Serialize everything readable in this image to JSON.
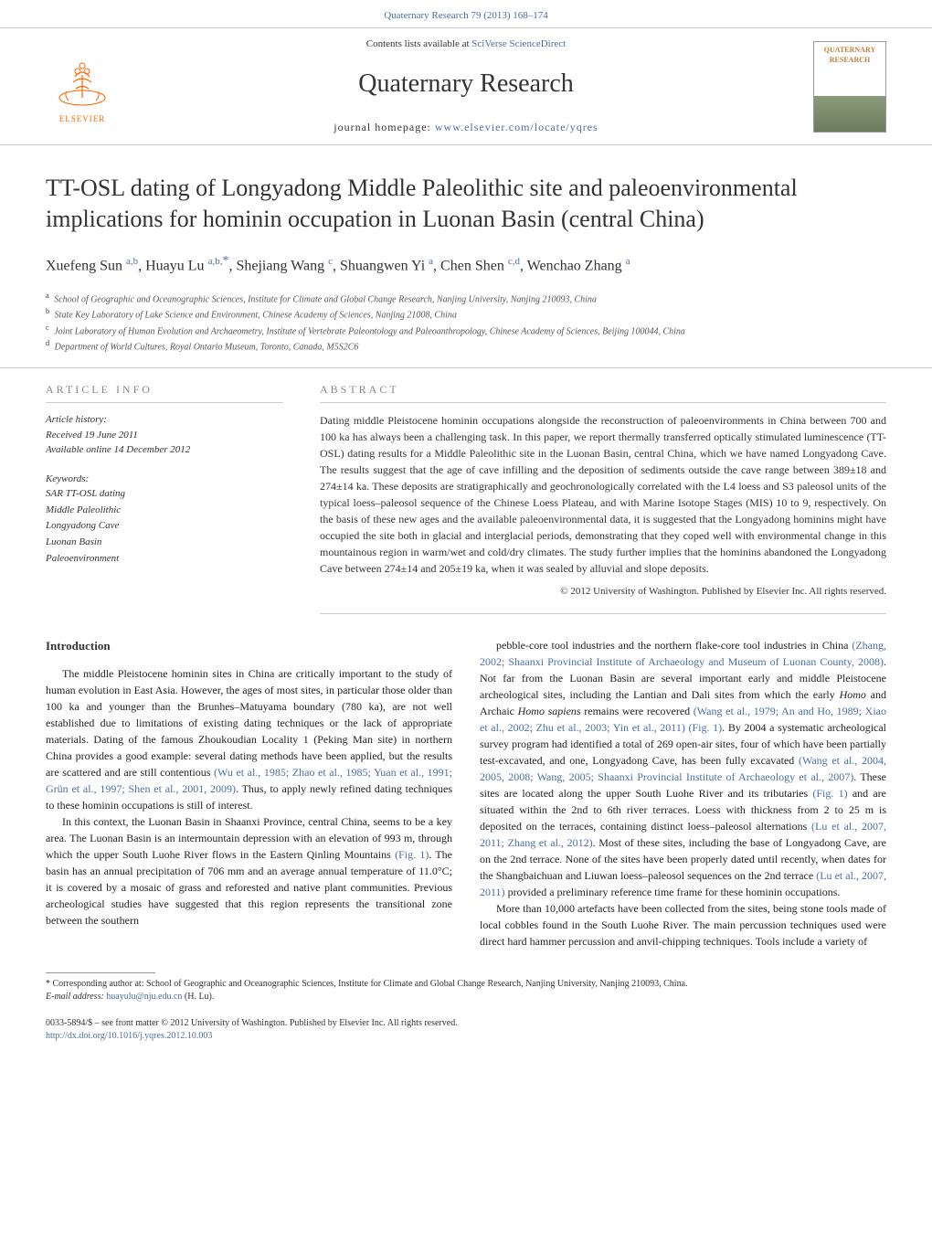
{
  "header": {
    "citation_link": "Quaternary Research 79 (2013) 168–174",
    "contents_text_prefix": "Contents lists available at ",
    "contents_link": "SciVerse ScienceDirect",
    "journal_name": "Quaternary Research",
    "homepage_prefix": "journal homepage: ",
    "homepage_url": "www.elsevier.com/locate/yqres",
    "elsevier_label": "ELSEVIER",
    "cover_title": "QUATERNARY RESEARCH"
  },
  "title": "TT-OSL dating of Longyadong Middle Paleolithic site and paleoenvironmental implications for hominin occupation in Luonan Basin (central China)",
  "authors_html": "Xuefeng Sun <span class='affil'>a,b</span>, Huayu Lu <span class='affil'>a,b,</span><span class='corr'>*</span>, Shejiang Wang <span class='affil'>c</span>, Shuangwen Yi <span class='affil'>a</span>, Chen Shen <span class='affil'>c,d</span>, Wenchao Zhang <span class='affil'>a</span>",
  "affiliations": [
    "School of Geographic and Oceanographic Sciences, Institute for Climate and Global Change Research, Nanjing University, Nanjing 210093, China",
    "State Key Laboratory of Lake Science and Environment, Chinese Academy of Sciences, Nanjing 21008, China",
    "Joint Laboratory of Human Evolution and Archaeometry, Institute of Vertebrate Paleontology and Paleoanthropology, Chinese Academy of Sciences, Beijing 100044, China",
    "Department of World Cultures, Royal Ontario Museum, Toronto, Canada, M5S2C6"
  ],
  "affil_labels": [
    "a",
    "b",
    "c",
    "d"
  ],
  "info": {
    "header": "ARTICLE INFO",
    "history_label": "Article history:",
    "received": "Received 19 June 2011",
    "online": "Available online 14 December 2012",
    "keywords_label": "Keywords:",
    "keywords": [
      "SAR TT-OSL dating",
      "Middle Paleolithic",
      "Longyadong Cave",
      "Luonan Basin",
      "Paleoenvironment"
    ]
  },
  "abstract": {
    "header": "ABSTRACT",
    "text": "Dating middle Pleistocene hominin occupations alongside the reconstruction of paleoenvironments in China between 700 and 100 ka has always been a challenging task. In this paper, we report thermally transferred optically stimulated luminescence (TT-OSL) dating results for a Middle Paleolithic site in the Luonan Basin, central China, which we have named Longyadong Cave. The results suggest that the age of cave infilling and the deposition of sediments outside the cave range between 389±18 and 274±14 ka. These deposits are stratigraphically and geochronologically correlated with the L4 loess and S3 paleosol units of the typical loess–paleosol sequence of the Chinese Loess Plateau, and with Marine Isotope Stages (MIS) 10 to 9, respectively. On the basis of these new ages and the available paleoenvironmental data, it is suggested that the Longyadong hominins might have occupied the site both in glacial and interglacial periods, demonstrating that they coped well with environmental change in this mountainous region in warm/wet and cold/dry climates. The study further implies that the hominins abandoned the Longyadong Cave between 274±14 and 205±19 ka, when it was sealed by alluvial and slope deposits.",
    "copyright": "© 2012 University of Washington. Published by Elsevier Inc. All rights reserved."
  },
  "intro_heading": "Introduction",
  "left_col": [
    "The middle Pleistocene hominin sites in China are critically important to the study of human evolution in East Asia. However, the ages of most sites, in particular those older than 100 ka and younger than the Brunhes–Matuyama boundary (780 ka), are not well established due to limitations of existing dating techniques or the lack of appropriate materials. Dating of the famous Zhoukoudian Locality 1 (Peking Man site) in northern China provides a good example: several dating methods have been applied, but the results are scattered and are still contentious <span class='citation'>(Wu et al., 1985; Zhao et al., 1985; Yuan et al., 1991; Grün et al., 1997; Shen et al., 2001, 2009)</span>. Thus, to apply newly refined dating techniques to these hominin occupations is still of interest.",
    "In this context, the Luonan Basin in Shaanxi Province, central China, seems to be a key area. The Luonan Basin is an intermountain depression with an elevation of 993 m, through which the upper South Luohe River flows in the Eastern Qinling Mountains <span class='citation'>(Fig. 1)</span>. The basin has an annual precipitation of 706 mm and an average annual temperature of 11.0°C; it is covered by a mosaic of grass and reforested and native plant communities. Previous archeological studies have suggested that this region represents the transitional zone between the southern"
  ],
  "right_col": [
    "pebble-core tool industries and the northern flake-core tool industries in China <span class='citation'>(Zhang, 2002; Shaanxi Provincial Institute of Archaeology and Museum of Luonan County, 2008)</span>. Not far from the Luonan Basin are several important early and middle Pleistocene archeological sites, including the Lantian and Dali sites from which the early <i>Homo</i> and Archaic <i>Homo sapiens</i> remains were recovered <span class='citation'>(Wang et al., 1979; An and Ho, 1989; Xiao et al., 2002; Zhu et al., 2003; Yin et al., 2011)</span> <span class='citation'>(Fig. 1)</span>. By 2004 a systematic archeological survey program had identified a total of 269 open-air sites, four of which have been partially test-excavated, and one, Longyadong Cave, has been fully excavated <span class='citation'>(Wang et al., 2004, 2005, 2008; Wang, 2005; Shaanxi Provincial Institute of Archaeology et al., 2007)</span>. These sites are located along the upper South Luohe River and its tributaries <span class='citation'>(Fig. 1)</span> and are situated within the 2nd to 6th river terraces. Loess with thickness from 2 to 25 m is deposited on the terraces, containing distinct loess–paleosol alternations <span class='citation'>(Lu et al., 2007, 2011; Zhang et al., 2012)</span>. Most of these sites, including the base of Longyadong Cave, are on the 2nd terrace. None of the sites have been properly dated until recently, when dates for the Shangbaichuan and Liuwan loess–paleosol sequences on the 2nd terrace <span class='citation'>(Lu et al., 2007, 2011)</span> provided a preliminary reference time frame for these hominin occupations.",
    "More than 10,000 artefacts have been collected from the sites, being stone tools made of local cobbles found in the South Luohe River. The main percussion techniques used were direct hard hammer percussion and anvil-chipping techniques. Tools include a variety of"
  ],
  "footnote": {
    "corr": "* Corresponding author at: School of Geographic and Oceanographic Sciences, Institute for Climate and Global Change Research, Nanjing University, Nanjing 210093, China.",
    "email_label": "E-mail address: ",
    "email": "huayulu@nju.edu.cn",
    "email_suffix": " (H. Lu)."
  },
  "bottom": {
    "line1": "0033-5894/$ – see front matter © 2012 University of Washington. Published by Elsevier Inc. All rights reserved.",
    "doi": "http://dx.doi.org/10.1016/j.yqres.2012.10.003"
  },
  "colors": {
    "link": "#4a6fa5",
    "text": "#333333",
    "orange": "#ff6600"
  }
}
